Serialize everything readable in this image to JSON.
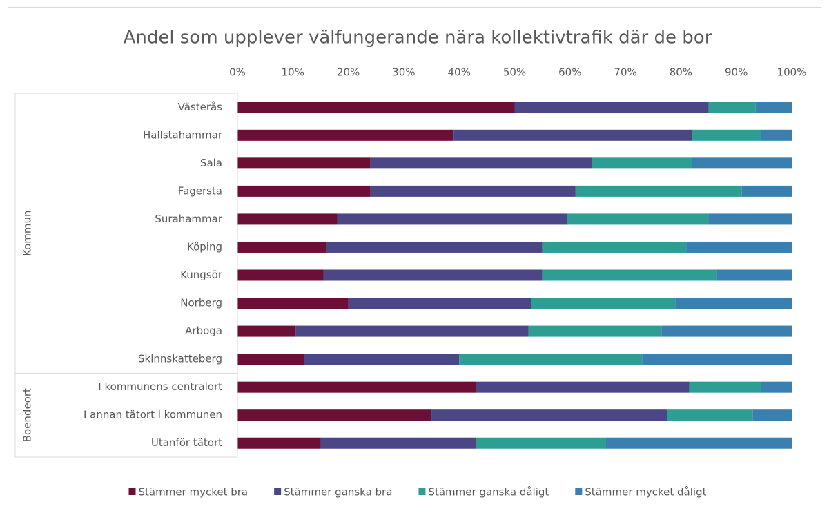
{
  "chart_data": {
    "type": "stacked_barh",
    "title": "Andel som upplever välfungerande nära kollektivtrafik där de bor",
    "categories": [
      "Västerås",
      "Hallstahammar",
      "Sala",
      "Fagersta",
      "Surahammar",
      "Köping",
      "Kungsör",
      "Norberg",
      "Arboga",
      "Skinnskatteberg",
      "I kommunens centralort",
      "I annan tätort i kommunen",
      "Utanför tätort"
    ],
    "groups": [
      {
        "name": "Kommun",
        "count": 10
      },
      {
        "name": "Boendeort",
        "count": 3
      }
    ],
    "series": [
      {
        "name": "Stämmer mycket bra",
        "color": "#6b0f36",
        "values": [
          50,
          39,
          24,
          24,
          18,
          16,
          15.5,
          20,
          10.5,
          12,
          43,
          35,
          15
        ]
      },
      {
        "name": "Stämmer ganska bra",
        "color": "#4b4787",
        "values": [
          35,
          43,
          40,
          37,
          41.5,
          39,
          39.5,
          33,
          42,
          28,
          38.5,
          42.5,
          28
        ]
      },
      {
        "name": "Stämmer ganska dåligt",
        "color": "#2e9e94",
        "values": [
          8.5,
          12.5,
          18,
          30,
          25.5,
          26,
          31.5,
          26,
          24,
          33,
          13,
          15.5,
          23.5
        ]
      },
      {
        "name": "Stämmer mycket dåligt",
        "color": "#3a7fb0",
        "values": [
          6.5,
          5.5,
          18,
          9,
          15,
          19,
          13.5,
          21,
          23.5,
          27,
          5.5,
          7,
          33.5
        ]
      }
    ],
    "xlim": [
      0,
      100
    ],
    "xticks": [
      {
        "value": 0,
        "label": "0%"
      },
      {
        "value": 10,
        "label": "10%"
      },
      {
        "value": 20,
        "label": "20%"
      },
      {
        "value": 30,
        "label": "30%"
      },
      {
        "value": 40,
        "label": "40%"
      },
      {
        "value": 50,
        "label": "50%"
      },
      {
        "value": 60,
        "label": "60%"
      },
      {
        "value": 70,
        "label": "70%"
      },
      {
        "value": 80,
        "label": "80%"
      },
      {
        "value": 90,
        "label": "90%"
      },
      {
        "value": 100,
        "label": "100%"
      }
    ],
    "grid": false,
    "legend": "bottom"
  }
}
